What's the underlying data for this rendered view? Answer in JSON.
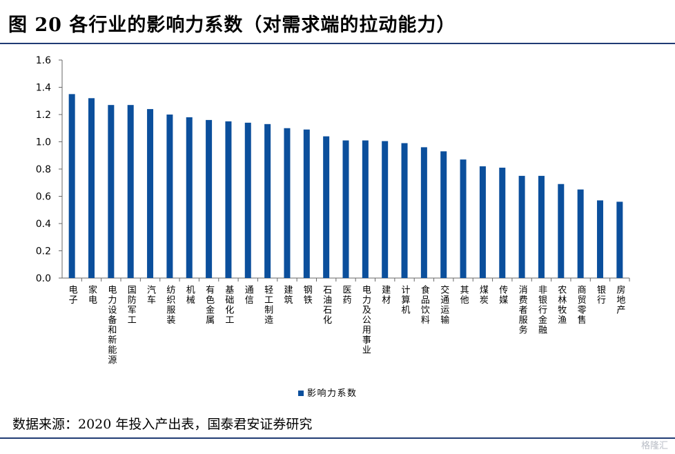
{
  "title": "图 20 各行业的影响力系数（对需求端的拉动能力）",
  "source": "数据来源：2020 年投入产出表，国泰君安证券研究",
  "watermark": "格隆汇",
  "colors": {
    "bar": "#0b4f9c",
    "rule": "#1f3a73",
    "axis": "#666666"
  },
  "chart_data": {
    "type": "bar",
    "title": "",
    "xlabel": "",
    "ylabel": "",
    "ylim": [
      0,
      1.6
    ],
    "yticks": [
      "0.0",
      "0.2",
      "0.4",
      "0.6",
      "0.8",
      "1.0",
      "1.2",
      "1.4",
      "1.6"
    ],
    "grid": false,
    "legend_position": "bottom",
    "categories": [
      "电子",
      "家电",
      "电力设备和新能源",
      "国防军工",
      "汽车",
      "纺织服装",
      "机械",
      "有色金属",
      "基础化工",
      "通信",
      "轻工制造",
      "建筑",
      "钢铁",
      "石油石化",
      "医药",
      "电力及公用事业",
      "建材",
      "计算机",
      "食品饮料",
      "交通运输",
      "其他",
      "煤炭",
      "传媒",
      "消费者服务",
      "非银行金融",
      "农林牧渔",
      "商贸零售",
      "银行",
      "房地产"
    ],
    "series": [
      {
        "name": "影响力系数",
        "values": [
          1.35,
          1.32,
          1.27,
          1.27,
          1.24,
          1.2,
          1.18,
          1.16,
          1.15,
          1.14,
          1.13,
          1.1,
          1.09,
          1.04,
          1.01,
          1.01,
          1.005,
          0.99,
          0.96,
          0.93,
          0.87,
          0.82,
          0.81,
          0.75,
          0.75,
          0.69,
          0.65,
          0.57,
          0.56
        ]
      }
    ]
  }
}
